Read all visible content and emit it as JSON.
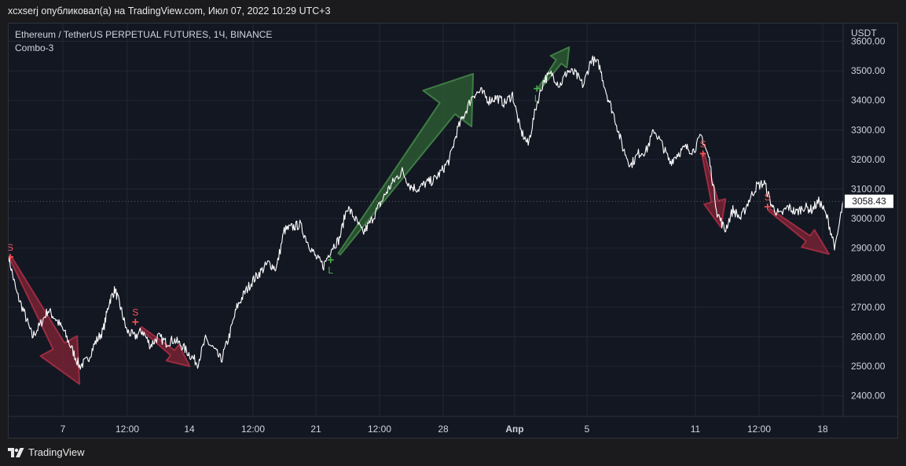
{
  "header": {
    "attribution": "xcxserj опубликовал(а) на TradingView.com, Июл 07, 2022 10:29 UTC+3"
  },
  "legend": {
    "symbol": "Ethereum / TetherUS PERPETUAL FUTURES, 1Ч, BINANCE",
    "indicator": "Combo-3"
  },
  "footer": {
    "brand": "TradingView"
  },
  "colors": {
    "background": "#131722",
    "grid": "#232733",
    "price_line": "#ffffff",
    "short": "#ff5252",
    "long": "#4caf50",
    "short_arrow": "#7f2235",
    "long_arrow": "#2e5e34"
  },
  "chart_data": {
    "type": "line",
    "currency_label": "USDT",
    "last_price": "3058.43",
    "ylim": [
      2330,
      3660
    ],
    "y_ticks": [
      "3600.00",
      "3500.00",
      "3400.00",
      "3300.00",
      "3200.00",
      "3100.00",
      "3000.00",
      "2900.00",
      "2800.00",
      "2700.00",
      "2600.00",
      "2500.00",
      "2400.00"
    ],
    "x_ticks": [
      "7",
      "12:00",
      "14",
      "12:00",
      "21",
      "12:00",
      "28",
      "Апр",
      "5",
      "11",
      "12:00",
      "18"
    ],
    "xlim": [
      0,
      1060
    ],
    "series": [
      {
        "points": [
          [
            0,
            2870
          ],
          [
            10,
            2750
          ],
          [
            20,
            2680
          ],
          [
            30,
            2600
          ],
          [
            40,
            2640
          ],
          [
            50,
            2690
          ],
          [
            60,
            2660
          ],
          [
            70,
            2620
          ],
          [
            80,
            2560
          ],
          [
            90,
            2500
          ],
          [
            100,
            2520
          ],
          [
            110,
            2580
          ],
          [
            120,
            2620
          ],
          [
            128,
            2720
          ],
          [
            135,
            2760
          ],
          [
            142,
            2700
          ],
          [
            150,
            2620
          ],
          [
            160,
            2600
          ],
          [
            170,
            2620
          ],
          [
            180,
            2570
          ],
          [
            190,
            2600
          ],
          [
            200,
            2580
          ],
          [
            210,
            2590
          ],
          [
            220,
            2570
          ],
          [
            230,
            2540
          ],
          [
            240,
            2510
          ],
          [
            250,
            2590
          ],
          [
            260,
            2560
          ],
          [
            270,
            2520
          ],
          [
            280,
            2600
          ],
          [
            290,
            2700
          ],
          [
            300,
            2750
          ],
          [
            310,
            2790
          ],
          [
            320,
            2820
          ],
          [
            330,
            2850
          ],
          [
            340,
            2830
          ],
          [
            350,
            2960
          ],
          [
            360,
            2970
          ],
          [
            370,
            2980
          ],
          [
            380,
            2920
          ],
          [
            390,
            2870
          ],
          [
            400,
            2840
          ],
          [
            410,
            2900
          ],
          [
            420,
            2930
          ],
          [
            430,
            3040
          ],
          [
            440,
            3000
          ],
          [
            450,
            2950
          ],
          [
            460,
            2990
          ],
          [
            470,
            3040
          ],
          [
            480,
            3090
          ],
          [
            490,
            3130
          ],
          [
            500,
            3160
          ],
          [
            510,
            3110
          ],
          [
            520,
            3100
          ],
          [
            530,
            3120
          ],
          [
            540,
            3130
          ],
          [
            550,
            3160
          ],
          [
            560,
            3200
          ],
          [
            570,
            3300
          ],
          [
            580,
            3360
          ],
          [
            590,
            3420
          ],
          [
            600,
            3430
          ],
          [
            610,
            3400
          ],
          [
            620,
            3410
          ],
          [
            630,
            3390
          ],
          [
            640,
            3420
          ],
          [
            650,
            3300
          ],
          [
            660,
            3250
          ],
          [
            670,
            3380
          ],
          [
            680,
            3470
          ],
          [
            690,
            3490
          ],
          [
            700,
            3450
          ],
          [
            710,
            3500
          ],
          [
            720,
            3490
          ],
          [
            730,
            3450
          ],
          [
            740,
            3540
          ],
          [
            750,
            3520
          ],
          [
            760,
            3420
          ],
          [
            770,
            3340
          ],
          [
            780,
            3240
          ],
          [
            790,
            3180
          ],
          [
            800,
            3220
          ],
          [
            810,
            3230
          ],
          [
            820,
            3300
          ],
          [
            830,
            3250
          ],
          [
            840,
            3190
          ],
          [
            850,
            3220
          ],
          [
            860,
            3240
          ],
          [
            870,
            3230
          ],
          [
            880,
            3280
          ],
          [
            890,
            3200
          ],
          [
            900,
            3020
          ],
          [
            910,
            2960
          ],
          [
            920,
            3030
          ],
          [
            930,
            3000
          ],
          [
            940,
            3060
          ],
          [
            950,
            3110
          ],
          [
            960,
            3120
          ],
          [
            970,
            3040
          ],
          [
            980,
            3010
          ],
          [
            990,
            3040
          ],
          [
            1000,
            3020
          ],
          [
            1010,
            3040
          ],
          [
            1020,
            3030
          ],
          [
            1030,
            3060
          ],
          [
            1040,
            3000
          ],
          [
            1050,
            2900
          ],
          [
            1060,
            3058
          ]
        ]
      }
    ],
    "signals": [
      {
        "label": "S",
        "x": 2,
        "y": 2870
      },
      {
        "label": "S",
        "x": 161,
        "y": 2650
      },
      {
        "label": "L",
        "x": 409,
        "y": 2860
      },
      {
        "label": "L",
        "x": 671,
        "y": 3440
      },
      {
        "label": "S",
        "x": 882,
        "y": 3220
      },
      {
        "label": "S",
        "x": 964,
        "y": 3040
      }
    ],
    "arrows": [
      {
        "kind": "short",
        "from": [
          2,
          2870
        ],
        "to": [
          90,
          2440
        ]
      },
      {
        "kind": "short",
        "from": [
          168,
          2630
        ],
        "to": [
          230,
          2500
        ]
      },
      {
        "kind": "long",
        "from": [
          420,
          2880
        ],
        "to": [
          590,
          3490
        ]
      },
      {
        "kind": "long",
        "from": [
          674,
          3440
        ],
        "to": [
          712,
          3580
        ]
      },
      {
        "kind": "short",
        "from": [
          882,
          3220
        ],
        "to": [
          905,
          2970
        ]
      },
      {
        "kind": "short",
        "from": [
          966,
          3030
        ],
        "to": [
          1042,
          2880
        ]
      }
    ]
  }
}
